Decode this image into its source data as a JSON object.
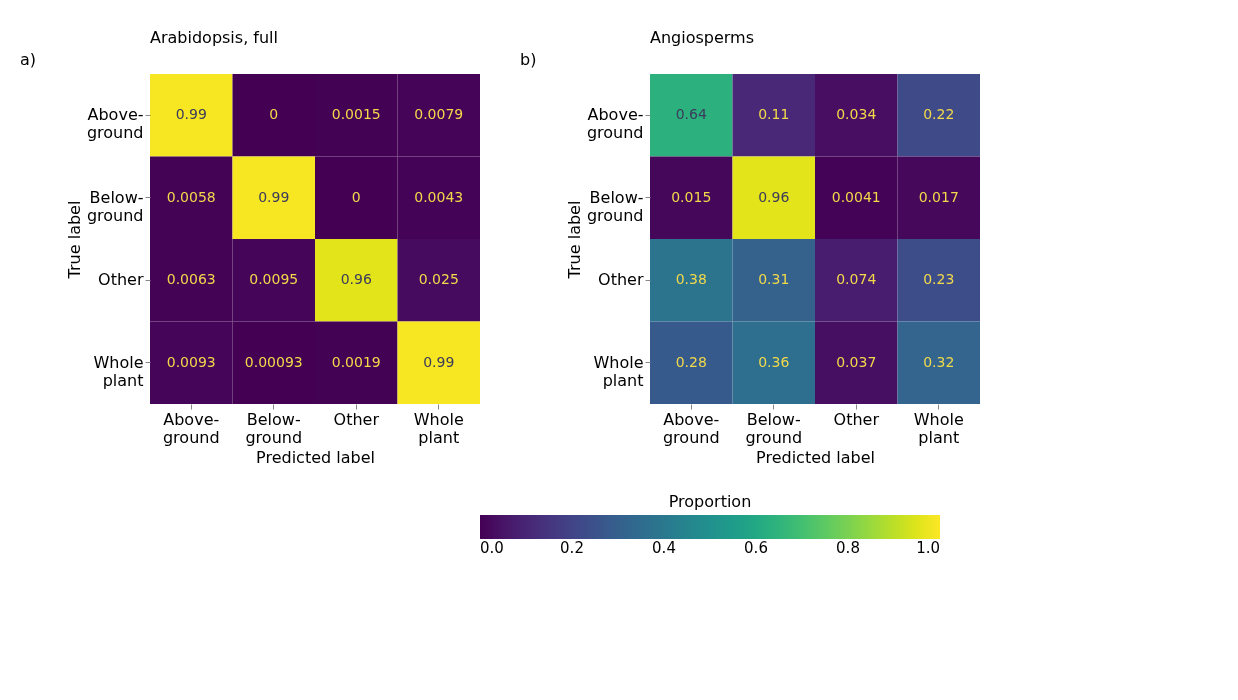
{
  "chart_data": [
    {
      "type": "heatmap",
      "title": "Arabidopsis, full",
      "annotations": [
        "a)"
      ],
      "xlabel": "Predicted label",
      "ylabel": "True label",
      "categories": [
        "Above-ground",
        "Below-ground",
        "Other",
        "Whole plant"
      ],
      "y_categories": [
        "Above-ground",
        "Below-ground",
        "Other",
        "Whole plant"
      ],
      "cells": [
        [
          0.99,
          0,
          0.0015,
          0.0079
        ],
        [
          0.0058,
          0.99,
          0,
          0.0043
        ],
        [
          0.0063,
          0.0095,
          0.96,
          0.025
        ],
        [
          0.0093,
          0.00093,
          0.0019,
          0.99
        ]
      ],
      "data_labels": true,
      "clabel": "Proportion",
      "clim": [
        0,
        1
      ],
      "cticks": [
        {
          "value": 0,
          "label": "0.0"
        },
        {
          "value": 0.2,
          "label": "0.2"
        },
        {
          "value": 0.4,
          "label": "0.4"
        },
        {
          "value": 0.6,
          "label": "0.6"
        },
        {
          "value": 0.8,
          "label": "0.8"
        },
        {
          "value": 1,
          "label": "1.0"
        }
      ]
    },
    {
      "type": "heatmap",
      "title": "Angiosperms",
      "annotations": [
        "b)"
      ],
      "xlabel": "Predicted label",
      "ylabel": "True label",
      "categories": [
        "Above-ground",
        "Below-ground",
        "Other",
        "Whole plant"
      ],
      "y_categories": [
        "Above-ground",
        "Below-ground",
        "Other",
        "Whole plant"
      ],
      "cells": [
        [
          0.64,
          0.11,
          0.034,
          0.22
        ],
        [
          0.015,
          0.96,
          0.0041,
          0.017
        ],
        [
          0.38,
          0.31,
          0.074,
          0.23
        ],
        [
          0.28,
          0.36,
          0.037,
          0.32
        ]
      ],
      "data_labels": true
    }
  ]
}
